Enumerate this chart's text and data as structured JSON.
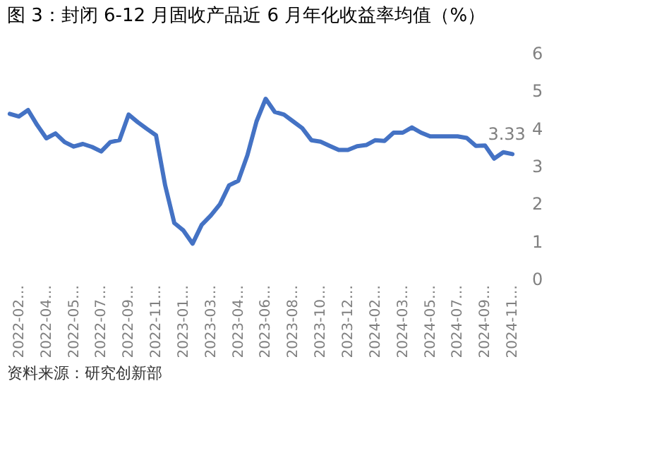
{
  "chart_data": {
    "type": "line",
    "title": "图 3：封闭 6-12 月固收产品近 6 月年化收益率均值（%）",
    "categories": [
      null,
      "2022-02…",
      null,
      null,
      "2022-04…",
      null,
      null,
      "2022-05…",
      null,
      null,
      "2022-07…",
      null,
      null,
      "2022-09…",
      null,
      null,
      "2022-11…",
      null,
      null,
      "2023-01…",
      null,
      null,
      "2023-03…",
      null,
      null,
      "2023-04…",
      null,
      null,
      "2023-06…",
      null,
      null,
      "2023-08…",
      null,
      null,
      "2023-10…",
      null,
      null,
      "2023-12…",
      null,
      null,
      "2024-02…",
      null,
      null,
      "2024-03…",
      null,
      null,
      "2024-05…",
      null,
      null,
      "2024-07…",
      null,
      null,
      "2024-09…",
      null,
      null,
      "2024-11…"
    ],
    "series": [
      {
        "color": "#4472c4",
        "values": [
          4.4,
          4.33,
          4.5,
          4.1,
          3.75,
          3.88,
          3.65,
          3.53,
          3.6,
          3.52,
          3.4,
          3.65,
          3.7,
          4.38,
          4.18,
          4.0,
          3.83,
          2.5,
          1.5,
          1.3,
          0.95,
          1.45,
          1.7,
          2.0,
          2.5,
          2.62,
          3.3,
          4.2,
          4.8,
          4.45,
          4.38,
          4.2,
          4.02,
          3.7,
          3.66,
          3.55,
          3.44,
          3.44,
          3.54,
          3.57,
          3.7,
          3.68,
          3.9,
          3.9,
          4.04,
          3.9,
          3.8,
          3.8,
          3.8,
          3.8,
          3.76,
          3.55,
          3.56,
          3.21,
          3.38,
          3.33
        ],
        "value_labels": [
          null,
          null,
          null,
          null,
          null,
          null,
          null,
          null,
          null,
          null,
          null,
          null,
          null,
          null,
          null,
          null,
          null,
          null,
          null,
          null,
          null,
          null,
          null,
          null,
          null,
          null,
          null,
          null,
          null,
          null,
          null,
          null,
          null,
          null,
          null,
          null,
          null,
          null,
          null,
          null,
          null,
          null,
          null,
          null,
          null,
          null,
          null,
          null,
          null,
          null,
          null,
          null,
          null,
          null,
          null,
          "3.33"
        ]
      }
    ],
    "ylim": [
      0,
      6
    ],
    "yticks": [
      0,
      1,
      2,
      3,
      4,
      5,
      6
    ],
    "grid": false,
    "legend": false,
    "marker": "none",
    "line_style": "solid",
    "annotations": [
      "资料来源：研究创新部"
    ]
  }
}
